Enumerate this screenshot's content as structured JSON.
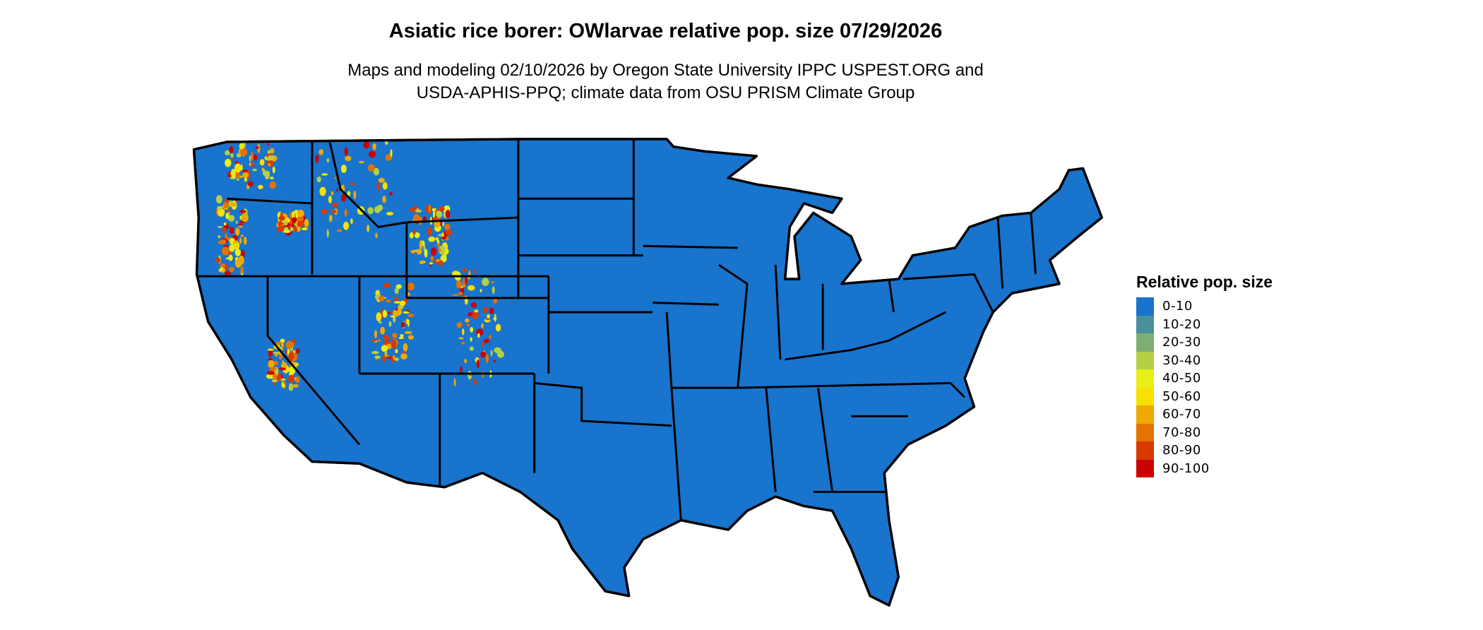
{
  "title": "Asiatic rice borer: OWlarvae relative pop. size 07/29/2026",
  "subtitle_line1": "Maps and modeling 02/10/2026 by Oregon State University IPPC USPEST.ORG and",
  "subtitle_line2": "USDA-APHIS-PPQ; climate data from OSU PRISM Climate Group",
  "chart_data": {
    "type": "heatmap",
    "region": "Contiguous United States",
    "legend": {
      "title": "Relative pop. size",
      "placement": "right",
      "bins": [
        {
          "label": "0-10",
          "color": "#1874cd"
        },
        {
          "label": "10-20",
          "color": "#4a8f9c"
        },
        {
          "label": "20-30",
          "color": "#7daf74"
        },
        {
          "label": "30-40",
          "color": "#b3cf45"
        },
        {
          "label": "40-50",
          "color": "#e6ef17"
        },
        {
          "label": "50-60",
          "color": "#f8e000"
        },
        {
          "label": "60-70",
          "color": "#eeaa00"
        },
        {
          "label": "70-80",
          "color": "#e47300"
        },
        {
          "label": "80-90",
          "color": "#d93a00"
        },
        {
          "label": "90-100",
          "color": "#cc0000"
        }
      ]
    },
    "dominant_bin": "0-10"
  }
}
